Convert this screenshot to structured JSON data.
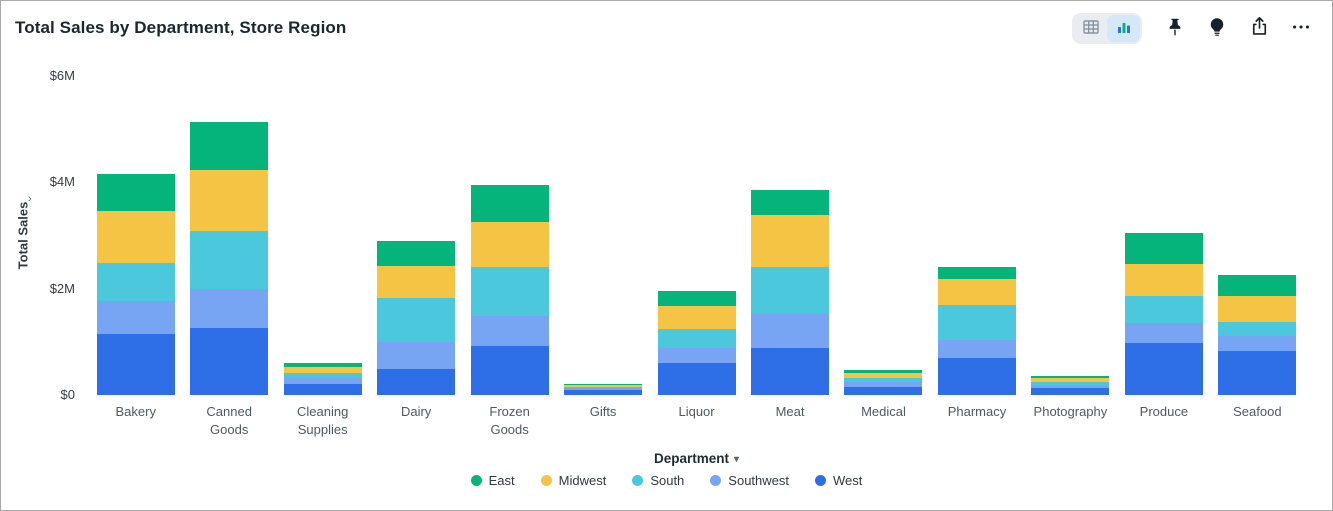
{
  "header": {
    "title": "Total Sales by Department, Store Region"
  },
  "toolbar": {
    "view_toggle": {
      "options": [
        {
          "name": "table-view",
          "icon": "table-icon"
        },
        {
          "name": "chart-view",
          "icon": "bar-chart-icon"
        }
      ],
      "selected": "chart-view"
    },
    "buttons": [
      {
        "name": "pin",
        "icon": "pin-icon"
      },
      {
        "name": "insights",
        "icon": "lightbulb-icon"
      },
      {
        "name": "share",
        "icon": "share-icon"
      },
      {
        "name": "more",
        "icon": "ellipsis-icon"
      }
    ]
  },
  "chart_data": {
    "type": "bar",
    "stacked": true,
    "title": "Total Sales by Department, Store Region",
    "xlabel": "Department",
    "ylabel": "Total Sales",
    "y_unit": "millions USD",
    "ylim": [
      0,
      6
    ],
    "yticks": [
      "$0",
      "$2M",
      "$4M",
      "$6M"
    ],
    "grid": false,
    "legend_position": "bottom",
    "categories": [
      "Bakery",
      "Canned Goods",
      "Cleaning Supplies",
      "Dairy",
      "Frozen Goods",
      "Gifts",
      "Liquor",
      "Meat",
      "Medical",
      "Pharmacy",
      "Photography",
      "Produce",
      "Seafood"
    ],
    "stack_order_bottom_to_top": [
      "West",
      "Southwest",
      "South",
      "Midwest",
      "East"
    ],
    "series": [
      {
        "name": "East",
        "color": "#04b47b",
        "values": [
          0.68,
          0.91,
          0.08,
          0.47,
          0.7,
          0.02,
          0.28,
          0.47,
          0.06,
          0.21,
          0.04,
          0.58,
          0.4
        ]
      },
      {
        "name": "Midwest",
        "color": "#f5c444",
        "values": [
          0.98,
          1.15,
          0.11,
          0.6,
          0.85,
          0.03,
          0.43,
          0.98,
          0.09,
          0.49,
          0.07,
          0.6,
          0.49
        ]
      },
      {
        "name": "South",
        "color": "#4bc8dc",
        "values": [
          0.72,
          1.08,
          0.09,
          0.83,
          0.92,
          0.03,
          0.36,
          0.87,
          0.08,
          0.66,
          0.06,
          0.51,
          0.26
        ]
      },
      {
        "name": "Southwest",
        "color": "#78a4f4",
        "values": [
          0.62,
          0.74,
          0.11,
          0.51,
          0.57,
          0.04,
          0.28,
          0.64,
          0.09,
          0.34,
          0.06,
          0.38,
          0.28
        ]
      },
      {
        "name": "West",
        "color": "#2e6fe8",
        "values": [
          1.15,
          1.26,
          0.21,
          0.49,
          0.92,
          0.09,
          0.6,
          0.89,
          0.15,
          0.7,
          0.13,
          0.98,
          0.83
        ]
      }
    ]
  }
}
